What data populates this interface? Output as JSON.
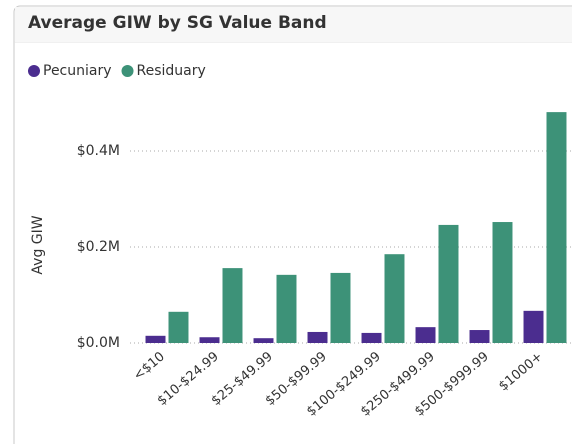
{
  "chart_data": {
    "type": "bar",
    "title": "Average GIW by SG Value Band",
    "y_label": "Avg GIW",
    "categories": [
      "<$10",
      "$10-$24.99",
      "$25-$49.99",
      "$50-$99.99",
      "$100-$249.99",
      "$250-$499.99",
      "$500-$999.99",
      "$1000+"
    ],
    "series": [
      {
        "name": "Pecuniary",
        "color": "#4b2d8f",
        "values": [
          15000,
          12000,
          10000,
          23000,
          21000,
          33000,
          27000,
          67000
        ]
      },
      {
        "name": "Residuary",
        "color": "#3d9278",
        "values": [
          65000,
          156000,
          142000,
          146000,
          185000,
          246000,
          252000,
          481000
        ]
      }
    ],
    "ylim": [
      0,
      500000
    ],
    "yticks": [
      {
        "value": 0,
        "label": "$0.0M"
      },
      {
        "value": 200000,
        "label": "$0.2M"
      },
      {
        "value": 400000,
        "label": "$0.4M"
      }
    ],
    "grid": true,
    "legend": "top-left"
  }
}
